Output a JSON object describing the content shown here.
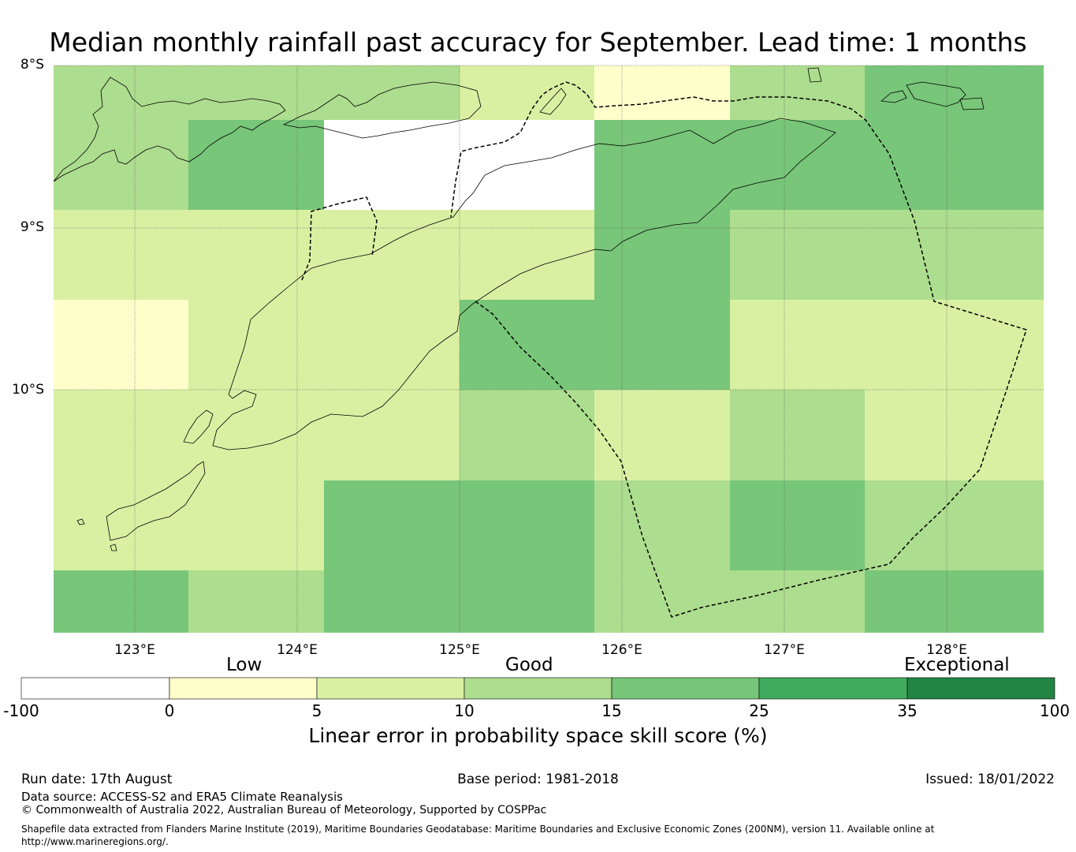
{
  "title": "Median monthly rainfall past accuracy for September. Lead time: 1 months",
  "lat_labels": [
    "8°S",
    "9°S",
    "10°S"
  ],
  "lon_labels": [
    "123°E",
    "124°E",
    "125°E",
    "126°E",
    "127°E",
    "128°E"
  ],
  "colors": {
    "neg": "#ffffff",
    "c0_5": "#ffffcc",
    "c5_10": "#d9f0a3",
    "c10_15": "#addd8e",
    "c15_25": "#78c679",
    "c25_35": "#41ab5d",
    "c35_100": "#238443",
    "coast": "#000000"
  },
  "grid_cells": {
    "description_units": "skill category per cell, rows north to south",
    "rows": [
      [
        "c10_15",
        "c10_15",
        "c10_15",
        "c5_10",
        "c0_5",
        "c10_15",
        "c15_25"
      ],
      [
        "c10_15",
        "c15_25",
        "neg",
        "neg",
        "c15_25",
        "c15_25",
        "c15_25"
      ],
      [
        "c5_10",
        "c5_10",
        "c5_10",
        "c5_10",
        "c15_25",
        "c10_15",
        "c10_15"
      ],
      [
        "c0_5",
        "c5_10",
        "c5_10",
        "c15_25",
        "c15_25",
        "c5_10",
        "c5_10"
      ],
      [
        "c5_10",
        "c5_10",
        "c5_10",
        "c10_15",
        "c5_10",
        "c10_15",
        "c5_10"
      ],
      [
        "c5_10",
        "c5_10",
        "c15_25",
        "c15_25",
        "c10_15",
        "c15_25",
        "c10_15"
      ],
      [
        "c15_25",
        "c10_15",
        "c15_25",
        "c15_25",
        "c10_15",
        "c10_15",
        "c15_25"
      ]
    ]
  },
  "colorbar": {
    "categories": [
      "Low",
      "Good",
      "Exceptional"
    ],
    "ticks": [
      "-100",
      "0",
      "5",
      "10",
      "15",
      "25",
      "35",
      "100"
    ],
    "label": "Linear error in probability space skill score (%)"
  },
  "footer": {
    "run_date": "Run date: 17th August",
    "base_period": "Base period: 1981-2018",
    "issued": "Issued: 18/01/2022",
    "data_source": "Data source: ACCESS-S2 and ERA5 Climate Reanalysis",
    "copyright": "© Commonwealth of Australia 2022, Australian Bureau of Meteorology, Supported by COSPPac",
    "shapefile": "Shapefile data extracted from Flanders Marine Institute (2019), Maritime Boundaries Geodatabase: Maritime Boundaries and Exclusive Economic Zones (200NM), version 11. Available online at http://www.marineregions.org/."
  }
}
